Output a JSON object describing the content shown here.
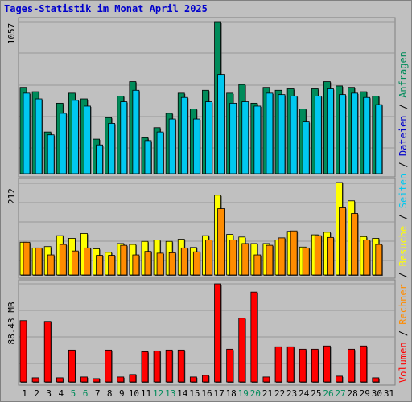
{
  "title": "Tages-Statistik im Monat April 2025",
  "colors": {
    "frame_bg": "#c0c0c0",
    "plot_bg": "#c0c0c0",
    "grid": "#999999",
    "anfragen": "#008b5a",
    "dateien": "#00c8f0",
    "besuche": "#ffff00",
    "rechner": "#ff8c00",
    "volumen": "#ff0000",
    "weekend_label": "#008b5a",
    "weekday_label": "#000000"
  },
  "legend": {
    "anfragen": "Anfragen",
    "dateien": "Dateien",
    "seiten": "Seiten",
    "besuche": "Besuche",
    "rechner": "Rechner",
    "volumen": "Volumen",
    "separator": " / "
  },
  "chart_data": [
    {
      "type": "bar",
      "panel": "top",
      "ylabel": "1057",
      "ylim": [
        0,
        1057
      ],
      "categories": [
        "1",
        "2",
        "3",
        "4",
        "5",
        "6",
        "7",
        "8",
        "9",
        "10",
        "11",
        "12",
        "13",
        "14",
        "15",
        "16",
        "17",
        "18",
        "19",
        "20",
        "21",
        "22",
        "23",
        "24",
        "25",
        "26",
        "27",
        "28",
        "29",
        "30",
        "31"
      ],
      "weekend_days": [
        "5",
        "6",
        "12",
        "13",
        "19",
        "20",
        "26",
        "27"
      ],
      "series": [
        {
          "name": "Anfragen",
          "values": [
            600,
            570,
            290,
            490,
            560,
            520,
            240,
            390,
            540,
            640,
            250,
            320,
            420,
            560,
            450,
            580,
            1057,
            560,
            620,
            490,
            600,
            580,
            590,
            450,
            590,
            640,
            610,
            600,
            570,
            540,
            0
          ]
        },
        {
          "name": "Dateien",
          "values": [
            560,
            520,
            270,
            420,
            510,
            470,
            200,
            350,
            500,
            580,
            230,
            290,
            380,
            530,
            380,
            500,
            690,
            490,
            500,
            470,
            560,
            550,
            540,
            360,
            540,
            590,
            550,
            560,
            530,
            480,
            0
          ]
        }
      ]
    },
    {
      "type": "bar",
      "panel": "middle",
      "ylabel": "212",
      "ylim": [
        0,
        212
      ],
      "categories": [
        "1",
        "2",
        "3",
        "4",
        "5",
        "6",
        "7",
        "8",
        "9",
        "10",
        "11",
        "12",
        "13",
        "14",
        "15",
        "16",
        "17",
        "18",
        "19",
        "20",
        "21",
        "22",
        "23",
        "24",
        "25",
        "26",
        "27",
        "28",
        "29",
        "30",
        "31"
      ],
      "series": [
        {
          "name": "Besuche",
          "values": [
            75,
            62,
            65,
            90,
            84,
            95,
            60,
            52,
            72,
            70,
            77,
            80,
            77,
            82,
            63,
            90,
            183,
            93,
            87,
            72,
            72,
            80,
            100,
            64,
            92,
            98,
            212,
            170,
            88,
            84,
            0
          ]
        },
        {
          "name": "Rechner",
          "values": [
            75,
            62,
            46,
            70,
            55,
            62,
            45,
            45,
            68,
            46,
            54,
            50,
            51,
            62,
            53,
            80,
            152,
            80,
            72,
            46,
            68,
            85,
            101,
            62,
            90,
            86,
            154,
            141,
            80,
            70,
            0
          ]
        }
      ]
    },
    {
      "type": "bar",
      "panel": "bottom",
      "ylabel": "88.43 MB",
      "ylim": [
        0,
        120
      ],
      "categories": [
        "1",
        "2",
        "3",
        "4",
        "5",
        "6",
        "7",
        "8",
        "9",
        "10",
        "11",
        "12",
        "13",
        "14",
        "15",
        "16",
        "17",
        "18",
        "19",
        "20",
        "21",
        "22",
        "23",
        "24",
        "25",
        "26",
        "27",
        "28",
        "29",
        "30",
        "31"
      ],
      "series": [
        {
          "name": "Volumen",
          "values": [
            75,
            5,
            74,
            5,
            39,
            6,
            4,
            39,
            6,
            9,
            37,
            38,
            39,
            39,
            6,
            8,
            120,
            40,
            78,
            110,
            6,
            43,
            43,
            40,
            40,
            44,
            7,
            40,
            44,
            5,
            0
          ]
        }
      ]
    }
  ]
}
